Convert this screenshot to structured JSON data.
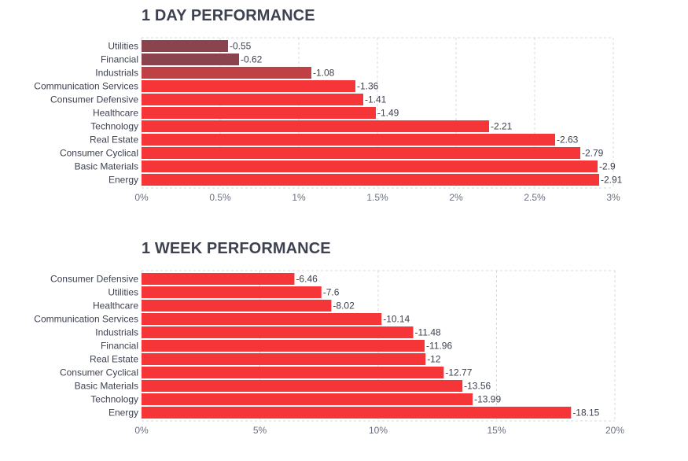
{
  "colors": {
    "bar_default": "#f63538",
    "bar_dark1": "#8b444e",
    "bar_dark2": "#8b444e",
    "bar_mid": "#bf4045",
    "grid": "#d8d8d8",
    "text": "#3d4150"
  },
  "chart_data": [
    {
      "type": "bar",
      "orientation": "horizontal",
      "title": "1 DAY PERFORMANCE",
      "categories": [
        "Utilities",
        "Financial",
        "Industrials",
        "Communication Services",
        "Consumer Defensive",
        "Healthcare",
        "Technology",
        "Real Estate",
        "Consumer Cyclical",
        "Basic Materials",
        "Energy"
      ],
      "values": [
        -0.55,
        -0.62,
        -1.08,
        -1.36,
        -1.41,
        -1.49,
        -2.21,
        -2.63,
        -2.79,
        -2.9,
        -2.91
      ],
      "value_labels": [
        "-0.55",
        "-0.62",
        "-1.08",
        "-1.36",
        "-1.41",
        "-1.49",
        "-2.21",
        "-2.63",
        "-2.79",
        "-2.9",
        "-2.91"
      ],
      "bar_colors": [
        "#8b444e",
        "#8b444e",
        "#bf4045",
        "#f63538",
        "#f63538",
        "#f63538",
        "#f63538",
        "#f63538",
        "#f63538",
        "#f63538",
        "#f63538"
      ],
      "xlim": [
        0,
        3
      ],
      "xticks": [
        0,
        0.5,
        1,
        1.5,
        2,
        2.5,
        3
      ],
      "xtick_labels": [
        "0%",
        "0.5%",
        "1%",
        "1.5%",
        "2%",
        "2.5%",
        "3%"
      ],
      "grid": true
    },
    {
      "type": "bar",
      "orientation": "horizontal",
      "title": "1 WEEK PERFORMANCE",
      "categories": [
        "Consumer Defensive",
        "Utilities",
        "Healthcare",
        "Communication Services",
        "Industrials",
        "Financial",
        "Real Estate",
        "Consumer Cyclical",
        "Basic Materials",
        "Technology",
        "Energy"
      ],
      "values": [
        -6.46,
        -7.6,
        -8.02,
        -10.14,
        -11.48,
        -11.96,
        -12,
        -12.77,
        -13.56,
        -13.99,
        -18.15
      ],
      "value_labels": [
        "-6.46",
        "-7.6",
        "-8.02",
        "-10.14",
        "-11.48",
        "-11.96",
        "-12",
        "-12.77",
        "-13.56",
        "-13.99",
        "-18.15"
      ],
      "bar_colors": [
        "#f63538",
        "#f63538",
        "#f63538",
        "#f63538",
        "#f63538",
        "#f63538",
        "#f63538",
        "#f63538",
        "#f63538",
        "#f63538",
        "#f63538"
      ],
      "xlim": [
        0,
        20
      ],
      "xticks": [
        0,
        5,
        10,
        15,
        20
      ],
      "xtick_labels": [
        "0%",
        "5%",
        "10%",
        "15%",
        "20%"
      ],
      "grid": true
    }
  ]
}
